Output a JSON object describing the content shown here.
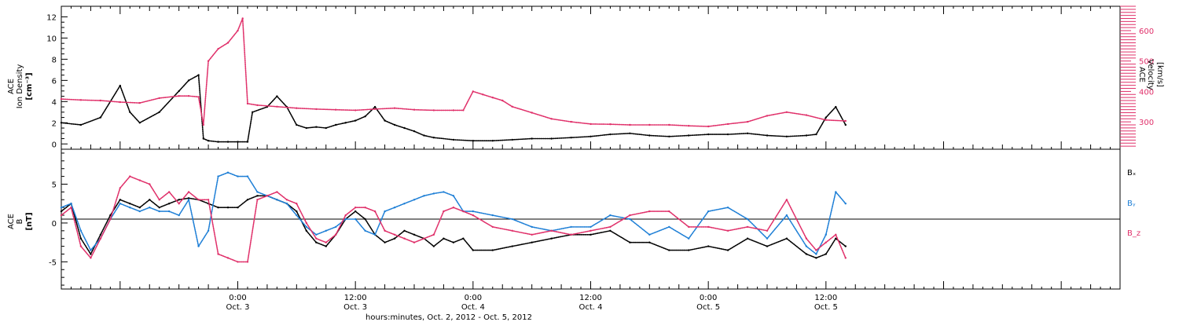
{
  "chart_data": [
    {
      "type": "scatter",
      "panel": "plasma",
      "xlabel": "hours:minutes, Oct.  2, 2012 - Oct.  5, 2012",
      "x_range_hours": [
        -18,
        90
      ],
      "x_ticks": [
        {
          "hour": 0,
          "time": "0:00",
          "date": "Oct. 3"
        },
        {
          "hour": 12,
          "time": "12:00",
          "date": "Oct. 3"
        },
        {
          "hour": 24,
          "time": "0:00",
          "date": "Oct. 4"
        },
        {
          "hour": 36,
          "time": "12:00",
          "date": "Oct. 4"
        },
        {
          "hour": 48,
          "time": "0:00",
          "date": "Oct. 5"
        },
        {
          "hour": 60,
          "time": "12:00",
          "date": "Oct. 5"
        }
      ],
      "y_left": {
        "label_lines": [
          "ACE",
          "Ion Density",
          "[cm⁻³]"
        ],
        "ylim": [
          -0.5,
          13
        ],
        "ticks": [
          0,
          2,
          4,
          6,
          8,
          10,
          12
        ]
      },
      "y_right": {
        "label_lines": [
          "ACE",
          "Velocity",
          "[km/s]"
        ],
        "ylim": [
          210,
          680
        ],
        "ticks": [
          300,
          400,
          500,
          600
        ]
      },
      "series": [
        {
          "name": "Ion Density",
          "axis": "left",
          "color": "#000000",
          "x": [
            -18,
            -16,
            -14,
            -12,
            -11,
            -10,
            -8,
            -6,
            -5,
            -4,
            -3.5,
            -3,
            -2,
            -1,
            0,
            1,
            1.5,
            3,
            4,
            5,
            6,
            7,
            8,
            9,
            10,
            11,
            12,
            13,
            14,
            15,
            16,
            17,
            18,
            19,
            20,
            22,
            24,
            26,
            28,
            30,
            32,
            34,
            36,
            38,
            40,
            42,
            44,
            46,
            48,
            50,
            52,
            54,
            56,
            58,
            59,
            60,
            61,
            62
          ],
          "values": [
            2.0,
            1.8,
            2.5,
            5.5,
            3.0,
            2.0,
            3.0,
            5.0,
            6.0,
            6.5,
            0.5,
            0.3,
            0.2,
            0.2,
            0.2,
            0.2,
            3.0,
            3.5,
            4.5,
            3.5,
            1.8,
            1.5,
            1.6,
            1.5,
            1.8,
            2.0,
            2.2,
            2.6,
            3.5,
            2.2,
            1.8,
            1.5,
            1.2,
            0.8,
            0.6,
            0.4,
            0.3,
            0.3,
            0.4,
            0.5,
            0.5,
            0.6,
            0.7,
            0.9,
            1.0,
            0.8,
            0.7,
            0.8,
            0.9,
            0.9,
            1.0,
            0.8,
            0.7,
            0.8,
            0.9,
            2.5,
            3.5,
            1.8
          ]
        },
        {
          "name": "Velocity",
          "axis": "right",
          "color": "#e0306a",
          "x": [
            -18,
            -16,
            -14,
            -12,
            -10,
            -8,
            -6,
            -5,
            -4,
            -3.5,
            -3,
            -2,
            -1,
            0,
            0.5,
            1,
            2,
            4,
            6,
            8,
            10,
            12,
            14,
            16,
            18,
            20,
            22,
            23,
            24,
            25,
            26,
            27,
            28,
            30,
            32,
            34,
            36,
            38,
            40,
            42,
            44,
            46,
            48,
            50,
            52,
            54,
            56,
            58,
            60,
            62
          ],
          "values": [
            375,
            372,
            370,
            365,
            362,
            378,
            385,
            385,
            382,
            290,
            500,
            540,
            560,
            600,
            640,
            360,
            355,
            350,
            345,
            342,
            340,
            338,
            342,
            345,
            340,
            338,
            338,
            338,
            400,
            390,
            380,
            370,
            350,
            330,
            310,
            300,
            293,
            292,
            290,
            290,
            290,
            287,
            285,
            293,
            300,
            320,
            332,
            322,
            306,
            303
          ]
        }
      ]
    },
    {
      "type": "scatter",
      "panel": "magnetic",
      "x_range_hours": [
        -18,
        90
      ],
      "y_left": {
        "label_lines": [
          "ACE",
          "B",
          "[nT]"
        ],
        "ylim": [
          -8.5,
          9.5
        ],
        "ticks": [
          -5,
          0,
          5
        ]
      },
      "zero_line": true,
      "legend": [
        {
          "name": "Bₓ",
          "color": "#000000"
        },
        {
          "name": "Bᵧ",
          "color": "#1e7fd6"
        },
        {
          "name": "B_z",
          "color": "#e0306a"
        }
      ],
      "series": [
        {
          "name": "Bx",
          "color": "#000000",
          "x": [
            -18,
            -17,
            -16,
            -15,
            -14,
            -13,
            -12,
            -11,
            -10,
            -9,
            -8,
            -7,
            -6,
            -5,
            -4,
            -3,
            -2,
            -1,
            0,
            1,
            2,
            3,
            4,
            5,
            6,
            7,
            8,
            9,
            10,
            11,
            12,
            13,
            14,
            15,
            16,
            17,
            18,
            19,
            20,
            21,
            22,
            23,
            24,
            26,
            28,
            30,
            32,
            34,
            36,
            38,
            40,
            42,
            44,
            46,
            48,
            50,
            52,
            54,
            56,
            58,
            59,
            60,
            61,
            62
          ],
          "values": [
            1.5,
            2.5,
            -2.0,
            -4.0,
            -1.5,
            1.0,
            3.0,
            2.5,
            2.0,
            3.0,
            2.0,
            2.5,
            3.0,
            3.2,
            3.0,
            2.5,
            2.0,
            2.0,
            2.0,
            3.0,
            3.5,
            3.5,
            3.0,
            2.5,
            1.5,
            -1.0,
            -2.5,
            -3.0,
            -1.5,
            0.5,
            1.5,
            0.5,
            -1.5,
            -2.5,
            -2.0,
            -1.0,
            -1.5,
            -2.0,
            -3.0,
            -2.0,
            -2.5,
            -2.0,
            -3.5,
            -3.5,
            -3.0,
            -2.5,
            -2.0,
            -1.5,
            -1.5,
            -1.0,
            -2.5,
            -2.5,
            -3.5,
            -3.5,
            -3.0,
            -3.5,
            -2.0,
            -3.0,
            -2.0,
            -4.0,
            -4.5,
            -4.0,
            -2.0,
            -3.0
          ]
        },
        {
          "name": "By",
          "color": "#1e7fd6",
          "x": [
            -18,
            -17,
            -16,
            -15,
            -14,
            -13,
            -12,
            -11,
            -10,
            -9,
            -8,
            -7,
            -6,
            -5,
            -4,
            -3,
            -2,
            -1,
            0,
            1,
            2,
            3,
            4,
            5,
            6,
            7,
            8,
            9,
            10,
            11,
            12,
            13,
            14,
            15,
            16,
            17,
            18,
            19,
            20,
            21,
            22,
            23,
            24,
            26,
            28,
            30,
            32,
            34,
            36,
            38,
            40,
            42,
            44,
            46,
            48,
            50,
            52,
            54,
            56,
            58,
            59,
            60,
            61,
            62
          ],
          "values": [
            2.0,
            2.5,
            -1.0,
            -3.5,
            -2.0,
            0.5,
            2.5,
            2.0,
            1.5,
            2.0,
            1.5,
            1.5,
            1.0,
            3.0,
            -3.0,
            -1.0,
            6.0,
            6.5,
            6.0,
            6.0,
            4.0,
            3.5,
            3.0,
            2.5,
            1.0,
            -0.5,
            -1.5,
            -1.0,
            -0.5,
            0.5,
            0.5,
            -1.0,
            -1.5,
            1.5,
            2.0,
            2.5,
            3.0,
            3.5,
            3.8,
            4.0,
            3.5,
            1.5,
            1.5,
            1.0,
            0.5,
            -0.5,
            -1.0,
            -0.5,
            -0.5,
            1.0,
            0.5,
            -1.5,
            -0.5,
            -2.0,
            1.5,
            2.0,
            0.5,
            -2.0,
            1.0,
            -3.0,
            -4.0,
            -1.5,
            4.0,
            2.5
          ]
        },
        {
          "name": "Bz",
          "color": "#e0306a",
          "x": [
            -18,
            -17,
            -16,
            -15,
            -14,
            -13,
            -12,
            -11,
            -10,
            -9,
            -8,
            -7,
            -6,
            -5,
            -4,
            -3,
            -2,
            -1,
            0,
            1,
            2,
            3,
            4,
            5,
            6,
            7,
            8,
            9,
            10,
            11,
            12,
            13,
            14,
            15,
            16,
            17,
            18,
            19,
            20,
            21,
            22,
            23,
            24,
            26,
            28,
            30,
            32,
            34,
            36,
            38,
            40,
            42,
            44,
            46,
            48,
            50,
            52,
            54,
            56,
            58,
            59,
            60,
            61,
            62
          ],
          "values": [
            1.0,
            2.0,
            -3.0,
            -4.5,
            -2.0,
            0.5,
            4.5,
            6.0,
            5.5,
            5.0,
            3.0,
            4.0,
            2.5,
            4.0,
            3.0,
            3.0,
            -4.0,
            -4.5,
            -5.0,
            -5.0,
            3.0,
            3.5,
            4.0,
            3.0,
            2.5,
            0.0,
            -2.0,
            -2.5,
            -1.5,
            1.0,
            2.0,
            2.0,
            1.5,
            -1.0,
            -1.5,
            -2.0,
            -2.5,
            -2.0,
            -1.5,
            1.5,
            2.0,
            1.5,
            1.0,
            -0.5,
            -1.0,
            -1.5,
            -1.0,
            -1.5,
            -1.0,
            -0.5,
            1.0,
            1.5,
            1.5,
            -0.5,
            -0.5,
            -1.0,
            -0.5,
            -1.0,
            3.0,
            -2.0,
            -3.5,
            -2.5,
            -1.5,
            -4.5
          ]
        }
      ]
    }
  ]
}
